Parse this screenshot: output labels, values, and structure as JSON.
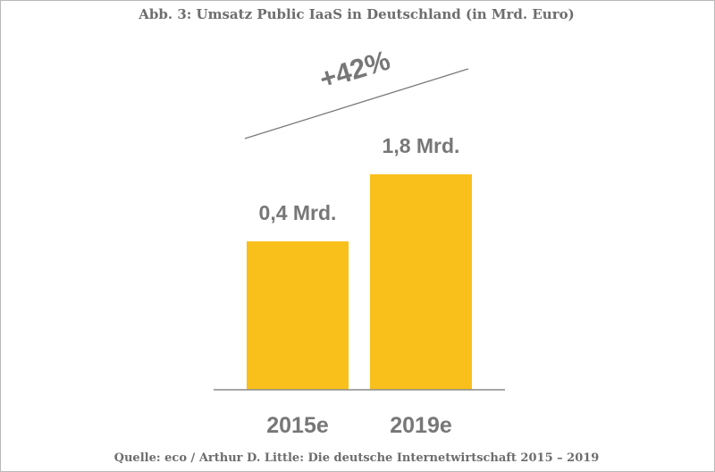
{
  "title": "Abb. 3: Umsatz Public IaaS in Deutschland (in Mrd. Euro)",
  "source": "Quelle: eco / Arthur D. Little: Die deutsche Internetwirtschaft 2015 – 2019",
  "chart_data": {
    "type": "bar",
    "categories": [
      "2015e",
      "2019e"
    ],
    "values": [
      0.4,
      1.8
    ],
    "data_labels": [
      "0,4 Mrd.",
      "1,8 Mrd."
    ],
    "growth_annotation": "+42%",
    "bar_color": "#f9c01c",
    "xlabel": "",
    "ylabel": "",
    "grid": false,
    "legend": "none"
  }
}
